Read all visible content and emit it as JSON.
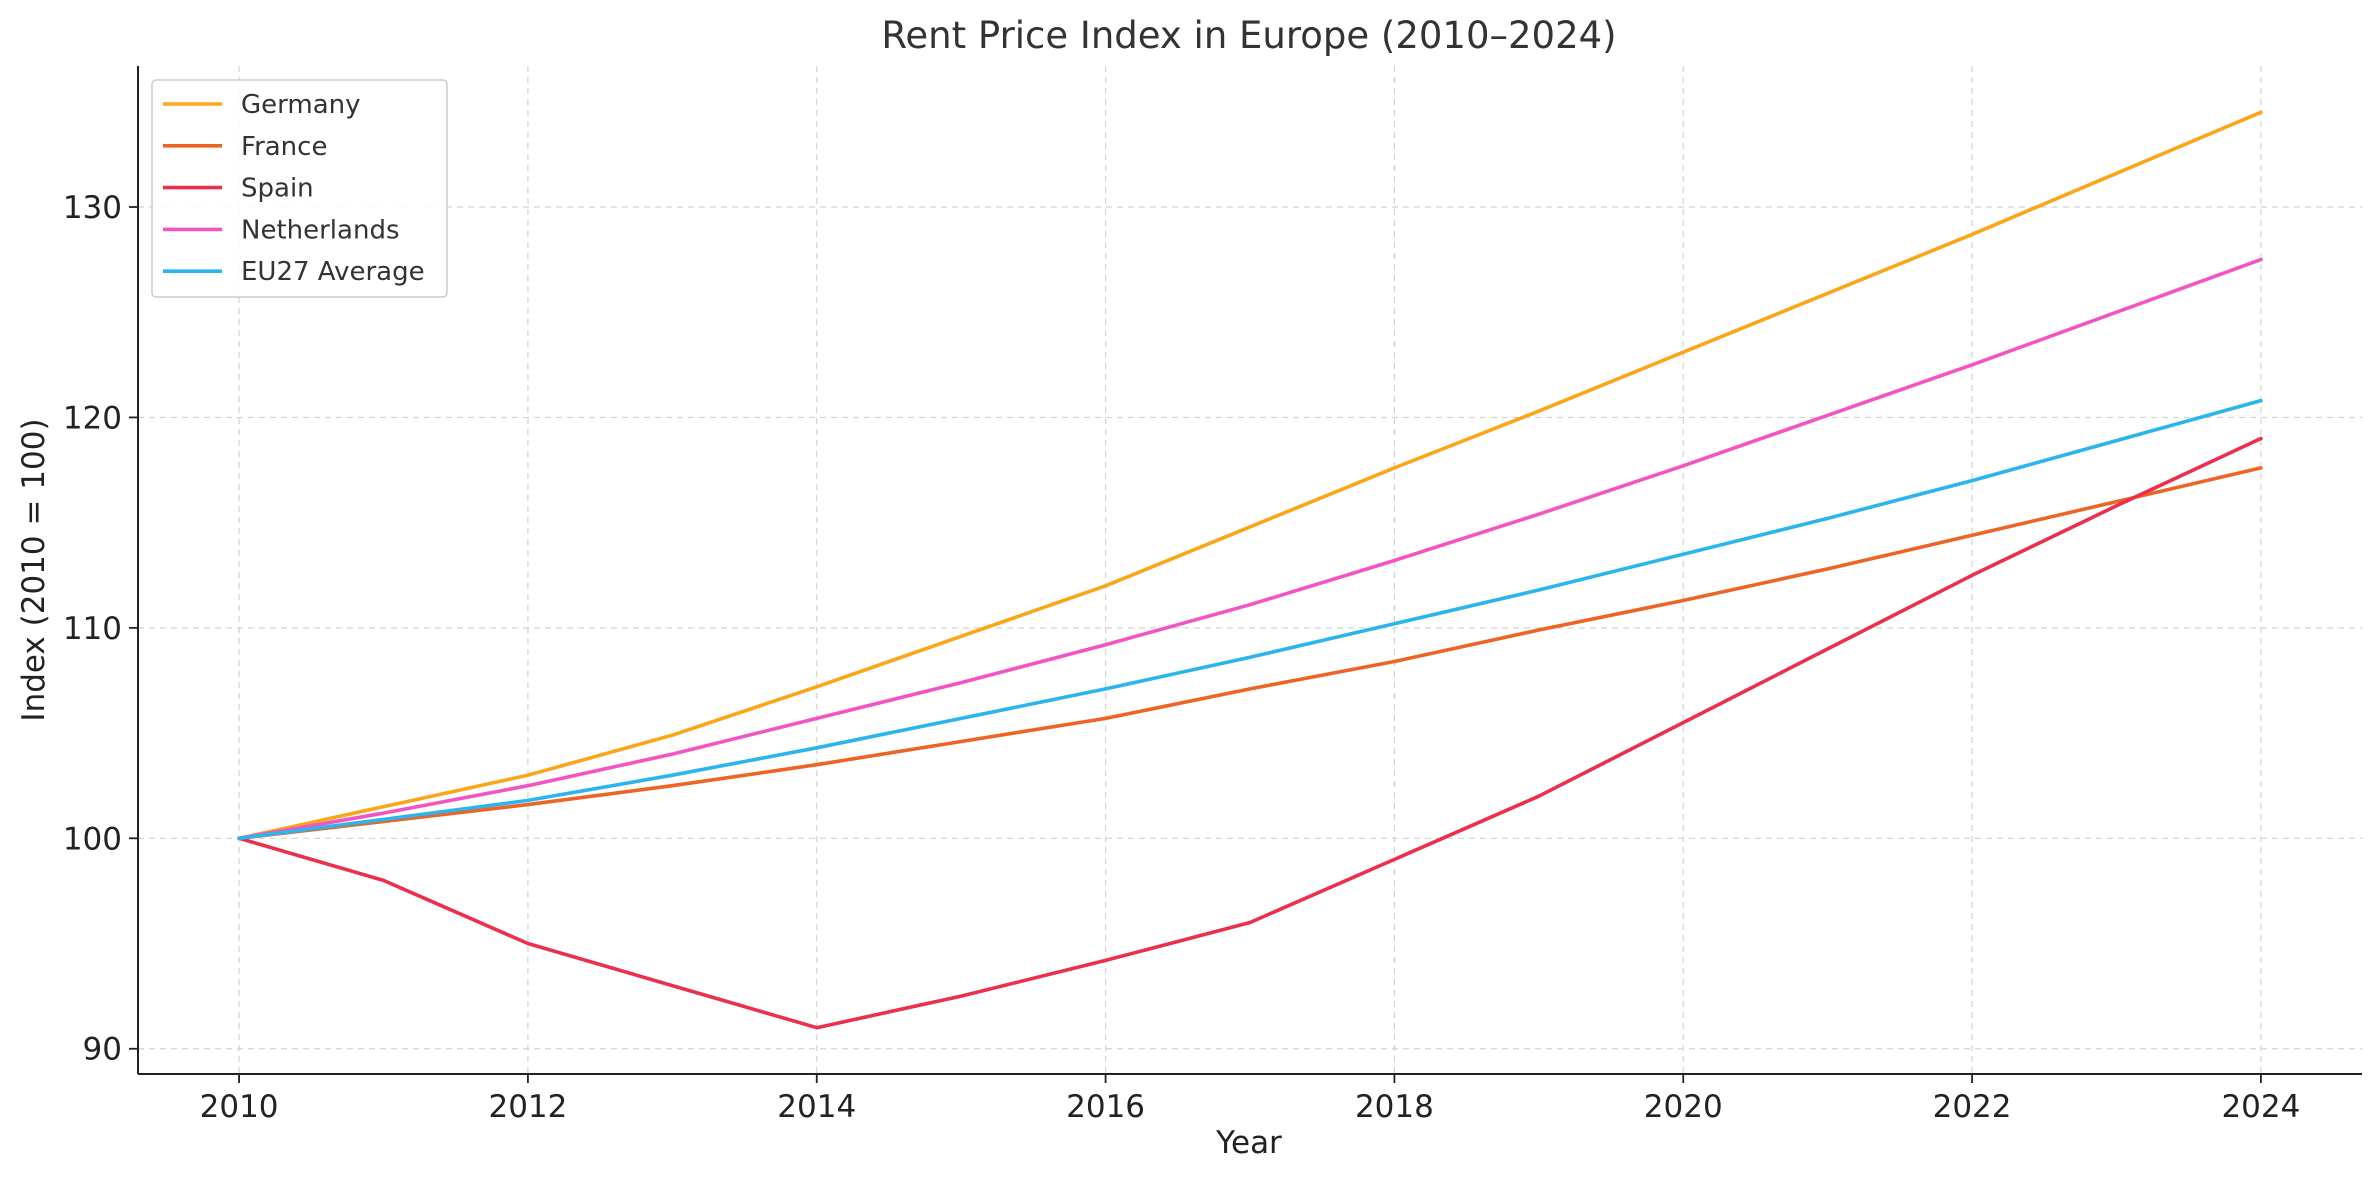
{
  "chart_data": {
    "type": "line",
    "title": "Rent Price Index in Europe (2010–2024)",
    "xlabel": "Year",
    "ylabel": "Index (2010 = 100)",
    "x": [
      2010,
      2011,
      2012,
      2013,
      2014,
      2015,
      2016,
      2017,
      2018,
      2019,
      2020,
      2021,
      2022,
      2023,
      2024
    ],
    "xlim": [
      2009.3,
      2024.7
    ],
    "ylim": [
      88.8,
      136.7
    ],
    "xticks": [
      2010,
      2012,
      2014,
      2016,
      2018,
      2020,
      2022,
      2024
    ],
    "yticks": [
      90,
      100,
      110,
      120,
      130
    ],
    "grid": true,
    "legend_position": "top-left",
    "series": [
      {
        "name": "Germany",
        "color": "#F9A61A",
        "values": [
          100,
          101.5,
          103,
          104.9,
          107.2,
          109.6,
          112,
          114.8,
          117.6,
          120.3,
          123.1,
          125.9,
          128.7,
          131.6,
          134.5
        ]
      },
      {
        "name": "France",
        "color": "#EC6426",
        "values": [
          100,
          100.8,
          101.6,
          102.5,
          103.5,
          104.6,
          105.7,
          107.1,
          108.4,
          109.9,
          111.3,
          112.8,
          114.4,
          116,
          117.6
        ]
      },
      {
        "name": "Spain",
        "color": "#E9304F",
        "values": [
          100,
          98,
          95,
          93,
          91,
          92.5,
          94.2,
          96,
          99,
          102,
          105.5,
          109,
          112.5,
          115.8,
          119
        ]
      },
      {
        "name": "Netherlands",
        "color": "#F255C2",
        "values": [
          100,
          101.2,
          102.5,
          104,
          105.7,
          107.4,
          109.2,
          111.1,
          113.2,
          115.4,
          117.7,
          120.1,
          122.5,
          125,
          127.5
        ]
      },
      {
        "name": "EU27 Average",
        "color": "#2BB5EC",
        "values": [
          100,
          100.9,
          101.8,
          103,
          104.3,
          105.7,
          107.1,
          108.6,
          110.2,
          111.8,
          113.5,
          115.2,
          117,
          118.9,
          120.8
        ]
      }
    ]
  }
}
